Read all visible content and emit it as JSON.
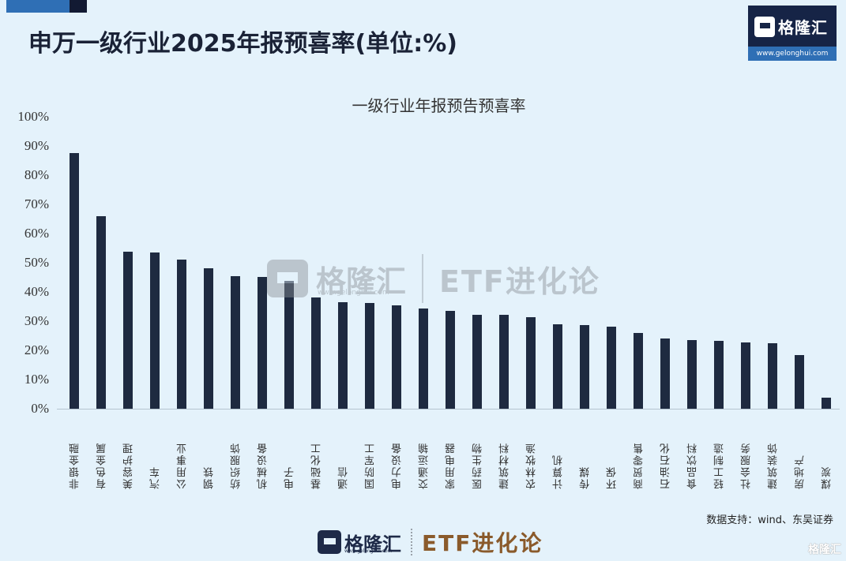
{
  "header": {
    "title": "申万一级行业2025年报预喜率(单位:%)",
    "accent_colors": {
      "blue": "#2f6fb5",
      "dark": "#121a33"
    }
  },
  "logo": {
    "name": "格隆汇",
    "url": "www.gelonghui.com"
  },
  "watermark": {
    "brand": "格隆汇",
    "url": "www.gelonghui.com",
    "column": "ETF进化论"
  },
  "footer": {
    "source": "数据支持：wind、东吴证券",
    "brand": "格隆汇",
    "brand_url": "www.gelonghui.com",
    "column": "ETF进化论",
    "corner_mark": "格隆汇"
  },
  "chart_data": {
    "type": "bar",
    "title": "一级行业年报预告预喜率",
    "xlabel": "",
    "ylabel": "",
    "ylim": [
      0,
      100
    ],
    "yticks": [
      "0%",
      "10%",
      "20%",
      "30%",
      "40%",
      "50%",
      "60%",
      "70%",
      "80%",
      "90%",
      "100%"
    ],
    "grid": false,
    "legend": null,
    "bar_color": "#1e2a40",
    "categories": [
      "非银金融",
      "有色金属",
      "美容护理",
      "汽车",
      "公用事业",
      "钢铁",
      "纺织服饰",
      "机械设备",
      "电子",
      "基础化工",
      "通信",
      "国防军工",
      "电力设备",
      "交通运输",
      "家用电器",
      "医药生物",
      "建筑材料",
      "农林牧渔",
      "计算机",
      "传媒",
      "环保",
      "商贸零售",
      "石油石化",
      "食品饮料",
      "轻工制造",
      "社会服务",
      "建筑装饰",
      "房地产",
      "煤炭"
    ],
    "values": [
      87.6,
      66.0,
      53.8,
      53.5,
      51.0,
      48.0,
      45.4,
      45.1,
      43.8,
      38.1,
      36.5,
      36.2,
      35.4,
      34.3,
      33.4,
      32.2,
      32.1,
      31.3,
      28.9,
      28.6,
      28.2,
      25.9,
      24.1,
      23.5,
      23.2,
      22.7,
      22.4,
      18.5,
      3.9
    ]
  }
}
